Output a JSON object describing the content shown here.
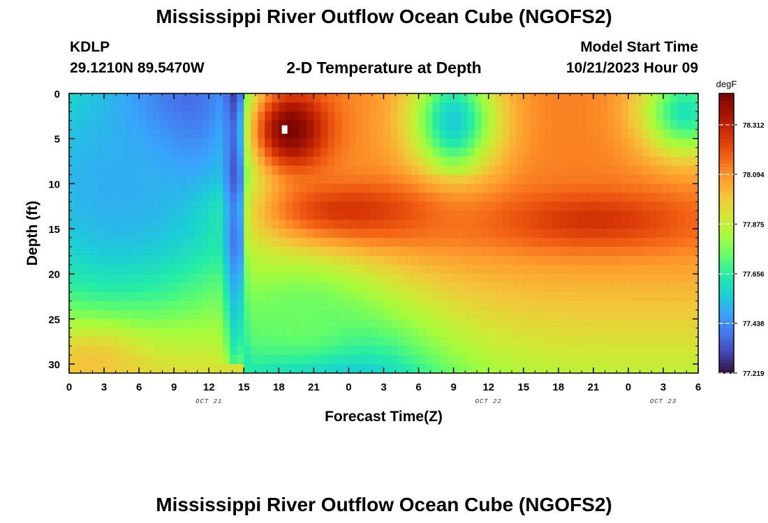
{
  "header": {
    "title": "Mississippi River Outflow Ocean Cube (NGOFS2)",
    "station": "KDLP",
    "coords": "29.1210N  89.5470W",
    "subtitle": "2-D Temperature at Depth",
    "model_start_label": "Model Start Time",
    "model_start_value": "10/21/2023 Hour 09"
  },
  "footer": {
    "title": "Mississippi River Outflow Ocean Cube (NGOFS2)"
  },
  "chart_data": {
    "type": "heatmap",
    "title": "2-D Temperature at Depth",
    "xlabel": "Forecast Time(Z)",
    "ylabel": "Depth (ft)",
    "x_ticks": [
      "0",
      "3",
      "6",
      "9",
      "12",
      "15",
      "18",
      "21",
      "0",
      "3",
      "6",
      "9",
      "12",
      "15",
      "18",
      "21",
      "0",
      "3",
      "6"
    ],
    "x_date_labels": [
      {
        "label": "OCT 21",
        "tick": 4
      },
      {
        "label": "OCT 22",
        "tick": 12
      },
      {
        "label": "OCT 23",
        "tick": 17
      }
    ],
    "y_ticks": [
      0,
      5,
      10,
      15,
      20,
      25,
      30
    ],
    "ylim": [
      0,
      31
    ],
    "x_range_hours": [
      0,
      54
    ],
    "colorbar": {
      "unit": "degF",
      "ticks": [
        77.219,
        77.438,
        77.656,
        77.875,
        78.094,
        78.312
      ],
      "range": [
        77.219,
        78.45
      ]
    },
    "marker": {
      "time_hour": 18.5,
      "depth_ft": 4
    },
    "field_features": [
      {
        "time_hour": 9.5,
        "depth_ft": 2,
        "value": 77.22,
        "width_h": 6,
        "depth_span": 9
      },
      {
        "time_hour": 4,
        "depth_ft": 10,
        "value": 77.5,
        "width_h": 12,
        "depth_span": 16
      },
      {
        "time_hour": 19,
        "depth_ft": 4,
        "value": 78.45,
        "width_h": 3.5,
        "depth_span": 5
      },
      {
        "time_hour": 33,
        "depth_ft": 3,
        "value": 77.62,
        "width_h": 4,
        "depth_span": 6
      },
      {
        "time_hour": 53,
        "depth_ft": 2,
        "value": 77.62,
        "width_h": 4,
        "depth_span": 5
      },
      {
        "time_hour": 24,
        "depth_ft": 13,
        "value": 78.27,
        "width_h": 7,
        "depth_span": 3
      },
      {
        "time_hour": 45,
        "depth_ft": 14,
        "value": 78.27,
        "width_h": 8,
        "depth_span": 3
      },
      {
        "time_hour": 2,
        "depth_ft": 30,
        "value": 78.0,
        "width_h": 5,
        "depth_span": 4
      },
      {
        "time_hour": 20,
        "depth_ft": 25,
        "value": 77.75,
        "width_h": 6,
        "depth_span": 6
      }
    ]
  }
}
